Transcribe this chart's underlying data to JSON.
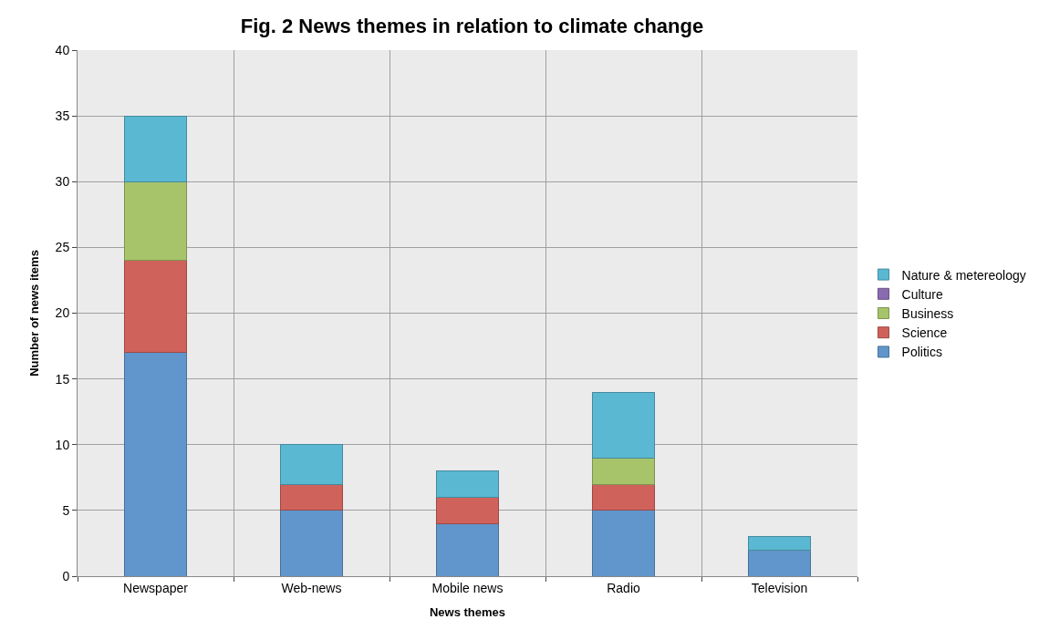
{
  "chart_data": {
    "type": "bar",
    "title": "Fig. 2 News themes in relation to climate change",
    "xlabel": "News themes",
    "ylabel": "Number of news items",
    "categories": [
      "Newspaper",
      "Web-news",
      "Mobile news",
      "Radio",
      "Television"
    ],
    "series": [
      {
        "name": "Politics",
        "color": "#6096cb",
        "values": [
          17,
          5,
          4,
          5,
          2
        ]
      },
      {
        "name": "Science",
        "color": "#d0625c",
        "values": [
          7,
          2,
          2,
          2,
          0
        ]
      },
      {
        "name": "Business",
        "color": "#a7c46a",
        "values": [
          6,
          0,
          0,
          2,
          0
        ]
      },
      {
        "name": "Culture",
        "color": "#8a6bb0",
        "values": [
          0,
          0,
          0,
          0,
          0
        ]
      },
      {
        "name": "Nature & metereology",
        "color": "#5bb8d2",
        "values": [
          5,
          3,
          2,
          5,
          1
        ]
      }
    ],
    "stacked": true,
    "ylim": [
      0,
      40
    ],
    "yticks": [
      0,
      5,
      10,
      15,
      20,
      25,
      30,
      35,
      40
    ],
    "grid": true,
    "legend": "right"
  }
}
